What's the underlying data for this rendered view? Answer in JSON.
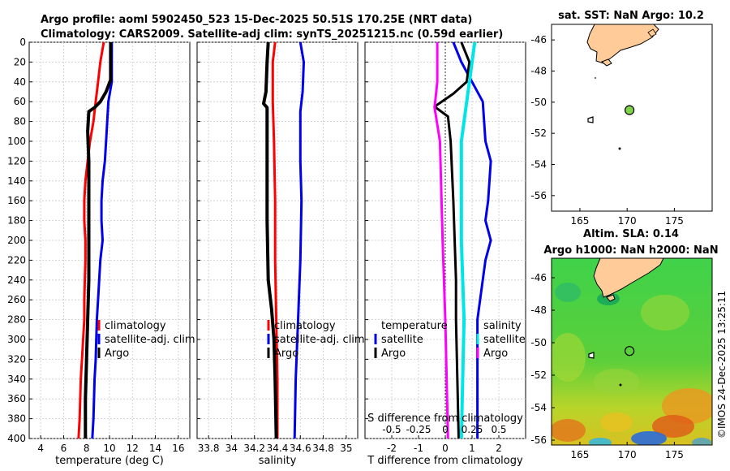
{
  "titles": {
    "line1": "Argo profile: aoml 5902450_523 15-Dec-2025 50.51S 170.25E (NRT data)",
    "line2": "Climatology: CARS2009. Satellite-adj clim: synTS_20251215.nc (0.59d earlier)"
  },
  "copyright": "©IMOS 24-Dec-2025 13:25:11",
  "colors": {
    "climatology": "#ff0000",
    "satellite": "#0000ee",
    "argo": "#000000",
    "salinity": "#00e5e5",
    "salinity_clim": "#ff00ff",
    "land": "#ffcc99"
  },
  "chart_data": [
    {
      "id": "temperature",
      "type": "line",
      "xlabel": "temperature (deg C)",
      "ylabel": "",
      "xlim": [
        3,
        17
      ],
      "ylim": [
        400,
        0
      ],
      "xticks": [
        "4",
        "6",
        "8",
        "10",
        "12",
        "14",
        "16"
      ],
      "yticks": [
        "0",
        "20",
        "40",
        "60",
        "80",
        "100",
        "120",
        "140",
        "160",
        "180",
        "200",
        "220",
        "240",
        "260",
        "280",
        "300",
        "320",
        "340",
        "360",
        "380",
        "400"
      ],
      "legend": [
        "climatology",
        "satellite-adj. clim",
        "Argo"
      ],
      "series": [
        {
          "name": "climatology",
          "color": "#ff0000",
          "points": [
            [
              9.5,
              0
            ],
            [
              9.2,
              20
            ],
            [
              9.0,
              40
            ],
            [
              8.8,
              60
            ],
            [
              8.6,
              80
            ],
            [
              8.3,
              100
            ],
            [
              8.1,
              120
            ],
            [
              7.9,
              140
            ],
            [
              7.8,
              160
            ],
            [
              7.8,
              180
            ],
            [
              7.9,
              200
            ],
            [
              7.9,
              220
            ],
            [
              7.8,
              260
            ],
            [
              7.8,
              280
            ],
            [
              7.6,
              320
            ],
            [
              7.5,
              340
            ],
            [
              7.4,
              380
            ],
            [
              7.3,
              400
            ]
          ]
        },
        {
          "name": "satellite-adj. clim",
          "color": "#0000ee",
          "points": [
            [
              10.2,
              0
            ],
            [
              10.2,
              20
            ],
            [
              10.2,
              40
            ],
            [
              9.9,
              60
            ],
            [
              9.8,
              80
            ],
            [
              9.7,
              100
            ],
            [
              9.6,
              120
            ],
            [
              9.4,
              140
            ],
            [
              9.3,
              160
            ],
            [
              9.3,
              180
            ],
            [
              9.4,
              200
            ],
            [
              9.2,
              220
            ],
            [
              9.0,
              260
            ],
            [
              8.9,
              280
            ],
            [
              8.8,
              320
            ],
            [
              8.7,
              340
            ],
            [
              8.6,
              380
            ],
            [
              8.5,
              400
            ]
          ]
        },
        {
          "name": "Argo",
          "color": "#000000",
          "points": [
            [
              10.1,
              0
            ],
            [
              10.1,
              20
            ],
            [
              10.1,
              38
            ],
            [
              9.7,
              50
            ],
            [
              9.2,
              60
            ],
            [
              8.7,
              66
            ],
            [
              8.2,
              70
            ],
            [
              8.1,
              90
            ],
            [
              8.2,
              120
            ],
            [
              8.2,
              160
            ],
            [
              8.2,
              200
            ],
            [
              8.2,
              240
            ],
            [
              8.1,
              280
            ],
            [
              8.0,
              320
            ],
            [
              7.9,
              360
            ],
            [
              7.9,
              400
            ]
          ]
        }
      ]
    },
    {
      "id": "salinity",
      "type": "line",
      "xlabel": "salinity",
      "ylabel": "",
      "xlim": [
        33.7,
        35.1
      ],
      "ylim": [
        400,
        0
      ],
      "xticks": [
        "33.8",
        "34",
        "34.2",
        "34.4",
        "34.6",
        "34.8",
        "35"
      ],
      "legend": [
        "climatology",
        "satellite-adj. clim",
        "Argo"
      ],
      "series": [
        {
          "name": "climatology",
          "color": "#ff0000",
          "points": [
            [
              34.38,
              0
            ],
            [
              34.36,
              20
            ],
            [
              34.36,
              60
            ],
            [
              34.37,
              100
            ],
            [
              34.38,
              160
            ],
            [
              34.38,
              220
            ],
            [
              34.39,
              280
            ],
            [
              34.4,
              340
            ],
            [
              34.4,
              400
            ]
          ]
        },
        {
          "name": "satellite-adj. clim",
          "color": "#0000ee",
          "points": [
            [
              34.6,
              0
            ],
            [
              34.63,
              20
            ],
            [
              34.62,
              50
            ],
            [
              34.6,
              70
            ],
            [
              34.6,
              120
            ],
            [
              34.61,
              160
            ],
            [
              34.6,
              220
            ],
            [
              34.58,
              280
            ],
            [
              34.56,
              340
            ],
            [
              34.55,
              400
            ]
          ]
        },
        {
          "name": "Argo",
          "color": "#000000",
          "points": [
            [
              34.32,
              0
            ],
            [
              34.31,
              20
            ],
            [
              34.3,
              50
            ],
            [
              34.28,
              62
            ],
            [
              34.31,
              66
            ],
            [
              34.31,
              100
            ],
            [
              34.31,
              180
            ],
            [
              34.32,
              240
            ],
            [
              34.35,
              270
            ],
            [
              34.37,
              300
            ],
            [
              34.38,
              340
            ],
            [
              34.39,
              400
            ]
          ]
        }
      ]
    },
    {
      "id": "difference",
      "type": "line",
      "xlabel": "T difference from climatology",
      "xlabel2": "S difference from climatology",
      "xlim": [
        -3,
        3
      ],
      "ylim": [
        400,
        0
      ],
      "xticks": [
        "-2",
        "-1",
        "0",
        "1",
        "2"
      ],
      "xticks2": [
        "-0.5",
        "-0.25",
        "0",
        "0.25",
        "0.5"
      ],
      "legend_temperature": [
        "temperature",
        "satellite",
        "Argo"
      ],
      "legend_salinity": [
        "salinity",
        "satellite",
        "Argo"
      ],
      "series": [
        {
          "name": "satellite T",
          "color": "#0000ee",
          "points": [
            [
              0.3,
              0
            ],
            [
              0.6,
              20
            ],
            [
              1.0,
              40
            ],
            [
              1.4,
              60
            ],
            [
              1.5,
              100
            ],
            [
              1.7,
              120
            ],
            [
              1.6,
              160
            ],
            [
              1.5,
              180
            ],
            [
              1.7,
              200
            ],
            [
              1.5,
              220
            ],
            [
              1.3,
              260
            ],
            [
              1.2,
              280
            ],
            [
              1.2,
              400
            ]
          ]
        },
        {
          "name": "Argo T",
          "color": "#000000",
          "points": [
            [
              0.6,
              0
            ],
            [
              0.9,
              20
            ],
            [
              0.8,
              40
            ],
            [
              0.3,
              52
            ],
            [
              -0.4,
              65
            ],
            [
              0.1,
              75
            ],
            [
              0.2,
              100
            ],
            [
              0.3,
              160
            ],
            [
              0.4,
              240
            ],
            [
              0.4,
              280
            ],
            [
              0.5,
              400
            ]
          ]
        },
        {
          "name": "satellite S",
          "color": "#00e5e5",
          "points": [
            [
              1.1,
              0
            ],
            [
              1.0,
              20
            ],
            [
              0.8,
              60
            ],
            [
              0.6,
              100
            ],
            [
              0.6,
              200
            ],
            [
              0.7,
              280
            ],
            [
              0.6,
              400
            ]
          ]
        },
        {
          "name": "Argo S",
          "color": "#ff00ff",
          "points": [
            [
              -0.3,
              0
            ],
            [
              -0.3,
              40
            ],
            [
              -0.4,
              66
            ],
            [
              -0.2,
              100
            ],
            [
              -0.1,
              200
            ],
            [
              0.0,
              280
            ],
            [
              0.1,
              400
            ]
          ]
        }
      ]
    },
    {
      "id": "sst_map",
      "type": "scatter",
      "title": "sat. SST: NaN Argo: 10.2",
      "xlim": [
        162,
        179
      ],
      "ylim": [
        -57,
        -45
      ],
      "xticks": [
        "165",
        "170",
        "175"
      ],
      "yticks": [
        "-46",
        "-48",
        "-50",
        "-52",
        "-54",
        "-56"
      ],
      "points": [
        {
          "lon": 170.25,
          "lat": -50.51,
          "label": "Argo"
        }
      ]
    },
    {
      "id": "sla_map",
      "type": "heatmap",
      "title1": "Altim. SLA: 0.14",
      "title2": "Argo h1000: NaN h2000: NaN",
      "xlim": [
        162,
        179
      ],
      "ylim": [
        -56.3,
        -44.8
      ],
      "xticks": [
        "165",
        "170",
        "175"
      ],
      "yticks": [
        "-46",
        "-48",
        "-50",
        "-52",
        "-54",
        "-56"
      ],
      "points": [
        {
          "lon": 170.25,
          "lat": -50.51,
          "label": "Argo"
        }
      ]
    }
  ]
}
